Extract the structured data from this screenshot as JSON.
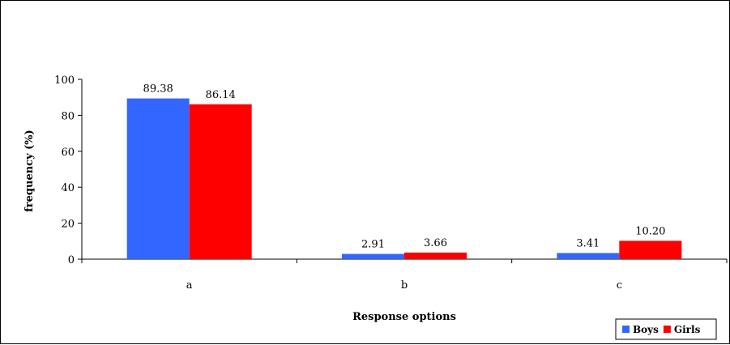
{
  "chart_data": {
    "type": "bar",
    "title": "",
    "xlabel": "Response options",
    "ylabel": "frequency  (%)",
    "categories": [
      "a",
      "b",
      "c"
    ],
    "series": [
      {
        "name": "Boys",
        "color": "#3366ff",
        "values": [
          89.38,
          2.91,
          3.41
        ],
        "labels": [
          "89.38",
          "2.91",
          "3.41"
        ]
      },
      {
        "name": "Girls",
        "color": "#ff0000",
        "values": [
          86.14,
          3.66,
          10.2
        ],
        "labels": [
          "86.14",
          "3.66",
          "10.20"
        ]
      }
    ],
    "ylim": [
      0,
      100
    ],
    "yticks": [
      0,
      20,
      40,
      60,
      80,
      100
    ],
    "yticklabels": [
      "0",
      "20",
      "40",
      "60",
      "80",
      "100"
    ],
    "grid": false,
    "legend_position": "bottom-right"
  }
}
